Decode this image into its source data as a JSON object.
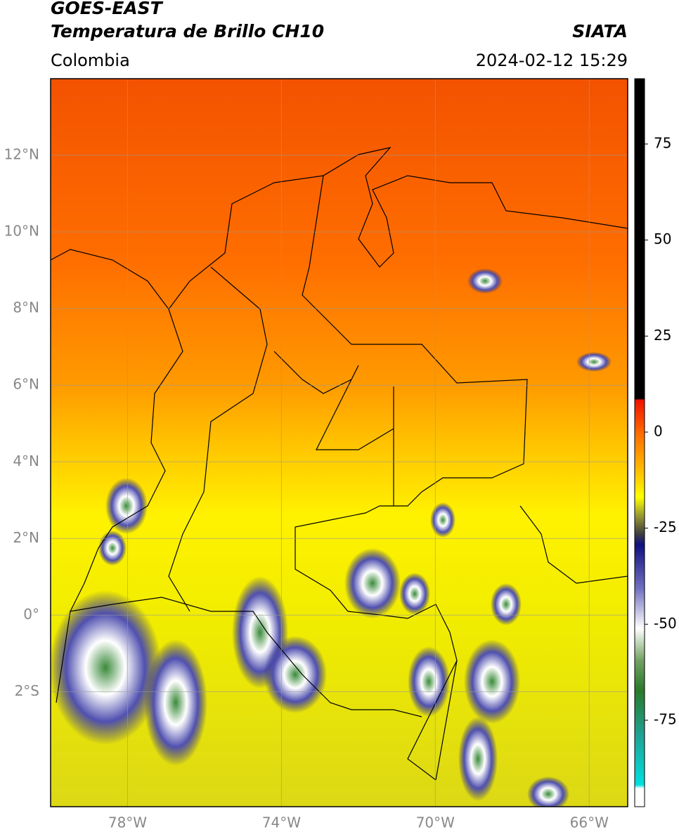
{
  "header": {
    "title": "GOES-EAST",
    "subtitle": "Temperatura de Brillo CH10",
    "region": "Colombia",
    "source": "SIATA",
    "datetime": "2024-02-12 15:29"
  },
  "map": {
    "xlim": [
      -80,
      -65
    ],
    "ylim": [
      -5,
      14
    ],
    "xticks": [
      {
        "value": -78,
        "label": "78°W"
      },
      {
        "value": -74,
        "label": "74°W"
      },
      {
        "value": -70,
        "label": "70°W"
      },
      {
        "value": -66,
        "label": "66°W"
      }
    ],
    "yticks": [
      {
        "value": 12,
        "label": "12°N"
      },
      {
        "value": 10,
        "label": "10°N"
      },
      {
        "value": 8,
        "label": "8°N"
      },
      {
        "value": 6,
        "label": "6°N"
      },
      {
        "value": 4,
        "label": "4°N"
      },
      {
        "value": 2,
        "label": "2°N"
      },
      {
        "value": 0,
        "label": "0°"
      },
      {
        "value": -2,
        "label": "2°S"
      }
    ]
  },
  "colorbar": {
    "lim": [
      -97.5,
      92
    ],
    "ticks": [
      75,
      50,
      25,
      0,
      -25,
      -50,
      -75
    ]
  }
}
